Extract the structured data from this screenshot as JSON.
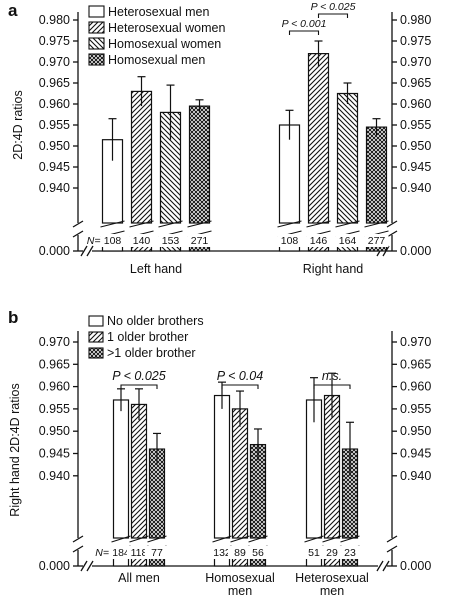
{
  "chart_data": [
    {
      "panel_label": "a",
      "type": "bar",
      "ylabel": "2D:4D ratios",
      "ylim": [
        0.94,
        0.98
      ],
      "yticks": [
        "0.940",
        "0.945",
        "0.950",
        "0.955",
        "0.960",
        "0.965",
        "0.970",
        "0.975",
        "0.980"
      ],
      "broken_axis_value": "0.000",
      "categories": [
        "Left hand",
        "Right hand"
      ],
      "series": [
        {
          "name": "Heterosexual men",
          "pattern": "white",
          "values": [
            0.9515,
            0.955
          ],
          "errors": [
            0.005,
            0.0035
          ],
          "n": [
            "108",
            "108"
          ]
        },
        {
          "name": "Heterosexual women",
          "pattern": "hatch-back",
          "values": [
            0.963,
            0.972
          ],
          "errors": [
            0.0035,
            0.003
          ],
          "n": [
            "140",
            "146"
          ]
        },
        {
          "name": "Homosexual women",
          "pattern": "hatch-forward",
          "values": [
            0.958,
            0.9625
          ],
          "errors": [
            0.0065,
            0.0025
          ],
          "n": [
            "153",
            "164"
          ]
        },
        {
          "name": "Homosexual men",
          "pattern": "crosshatch",
          "values": [
            0.9595,
            0.9545
          ],
          "errors": [
            0.0015,
            0.002
          ],
          "n": [
            "271",
            "277"
          ]
        }
      ],
      "n_prefix": "N=",
      "annotations": [
        {
          "text": "P < 0.001",
          "category": 1,
          "from_series": 0,
          "to_series": 1
        },
        {
          "text": "P < 0.025",
          "category": 1,
          "from_series": 1,
          "to_series": 2
        }
      ],
      "legend_position": "top-left"
    },
    {
      "panel_label": "b",
      "type": "bar",
      "ylabel": "Right hand 2D:4D ratios",
      "ylim": [
        0.935,
        0.97
      ],
      "yticks": [
        "0.940",
        "0.945",
        "0.950",
        "0.955",
        "0.960",
        "0.965",
        "0.970"
      ],
      "broken_axis_value": "0.000",
      "categories": [
        "All men",
        "Homosexual men",
        "Heterosexual men"
      ],
      "series": [
        {
          "name": "No older brothers",
          "pattern": "white",
          "values": [
            0.957,
            0.958,
            0.957
          ],
          "errors": [
            0.0025,
            0.003,
            0.005
          ],
          "n": [
            "184",
            "132",
            "51"
          ]
        },
        {
          "name": "1 older brother",
          "pattern": "hatch-back",
          "values": [
            0.956,
            0.955,
            0.958
          ],
          "errors": [
            0.0035,
            0.004,
            0.005
          ],
          "n": [
            "118",
            "89",
            "29"
          ]
        },
        {
          "name": ">1 older brother",
          "pattern": "crosshatch",
          "values": [
            0.946,
            0.947,
            0.946
          ],
          "errors": [
            0.0035,
            0.0035,
            0.006
          ],
          "n": [
            "77",
            "56",
            "23"
          ]
        }
      ],
      "n_prefix": "N=",
      "annotations": [
        {
          "text": "P < 0.025",
          "category": 0,
          "from_series": 0,
          "to_series": 2
        },
        {
          "text": "P < 0.04",
          "category": 1,
          "from_series": 0,
          "to_series": 2
        },
        {
          "text": "n.s.",
          "category": 2,
          "from_series": 0,
          "to_series": 2
        }
      ],
      "legend_position": "top-left"
    }
  ]
}
